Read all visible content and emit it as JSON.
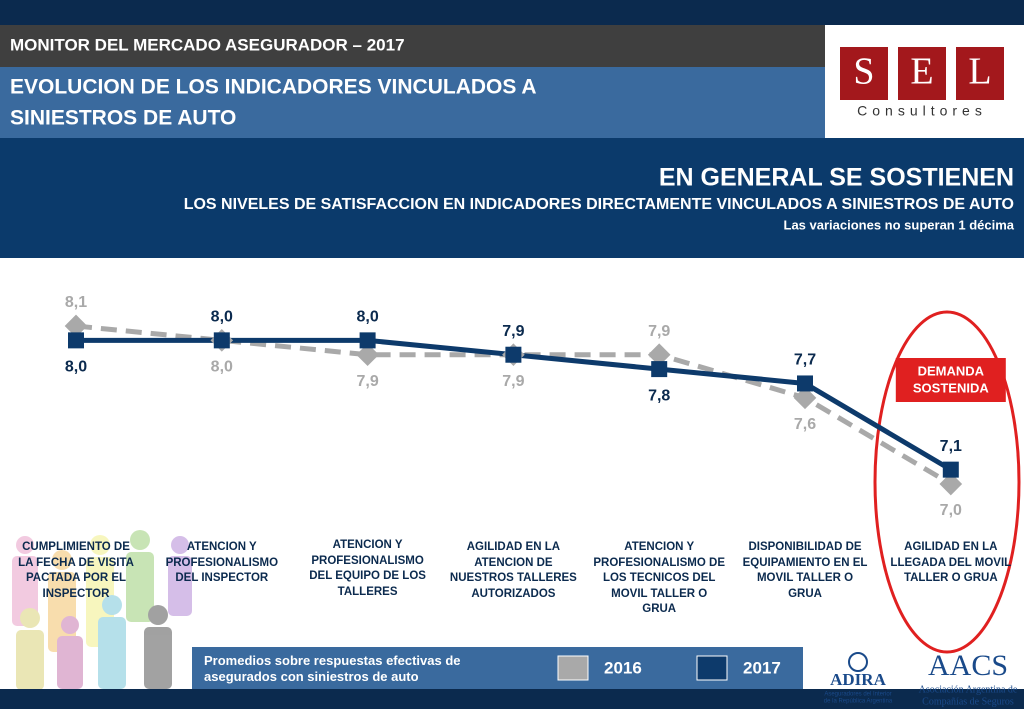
{
  "header": {
    "top_label": "MONITOR DEL MERCADO ASEGURADOR – 2017",
    "title_lines": [
      "EVOLUCION DE LOS INDICADORES VINCULADOS A",
      "SINIESTROS DE AUTO"
    ]
  },
  "logo": {
    "letters": [
      "S",
      "E",
      "L"
    ],
    "subtitle": "Consultores"
  },
  "banner": {
    "headline": "EN GENERAL SE SOSTIENEN",
    "subhead": "LOS NIVELES DE SATISFACCION EN INDICADORES DIRECTAMENTE VINCULADOS A SINIESTROS DE AUTO",
    "note": "Las variaciones no superan 1 décima"
  },
  "chart_data": {
    "type": "line",
    "categories": [
      "CUMPLIMIENTO DE LA FECHA DE VISITA PACTADA POR EL INSPECTOR",
      "ATENCION Y PROFESIONALISMO DEL INSPECTOR",
      "ATENCION Y PROFESIONALISMO DEL EQUIPO DE LOS TALLERES",
      "AGILIDAD EN LA ATENCION DE NUESTROS TALLERES AUTORIZADOS",
      "ATENCION Y PROFESIONALISMO DE LOS TECNICOS DEL MOVIL TALLER O GRUA",
      "DISPONIBILIDAD DE EQUIPAMIENTO EN EL MOVIL TALLER O GRUA",
      "AGILIDAD EN LA LLEGADA DEL MOVIL TALLER O GRUA"
    ],
    "series": [
      {
        "name": "2016",
        "color": "#a9a9a9",
        "values": [
          8.1,
          8.0,
          7.9,
          7.9,
          7.9,
          7.6,
          7.0
        ],
        "value_labels": [
          "8,1",
          "8,0",
          "7,9",
          "7,9",
          "7,9",
          "7,6",
          "7,0"
        ]
      },
      {
        "name": "2017",
        "color": "#0d3a6b",
        "values": [
          8.0,
          8.0,
          8.0,
          7.9,
          7.8,
          7.7,
          7.1
        ],
        "value_labels": [
          "8,0",
          "8,0",
          "8,0",
          "7,9",
          "7,8",
          "7,7",
          "7,1"
        ]
      }
    ],
    "ylim": [
      7.0,
      8.1
    ],
    "annotation": [
      "DEMANDA",
      "SOSTENIDA"
    ],
    "footnote": "Promedios sobre respuestas efectivas de asegurados con siniestros de auto"
  },
  "partners": {
    "adira": {
      "name": "ADIRA",
      "caption": [
        "Aseguradores del Interior",
        "de la República Argentina"
      ]
    },
    "aacs": {
      "name": "AACS",
      "caption": [
        "Asociación Argentina de",
        "Compañías de Seguros"
      ]
    }
  }
}
